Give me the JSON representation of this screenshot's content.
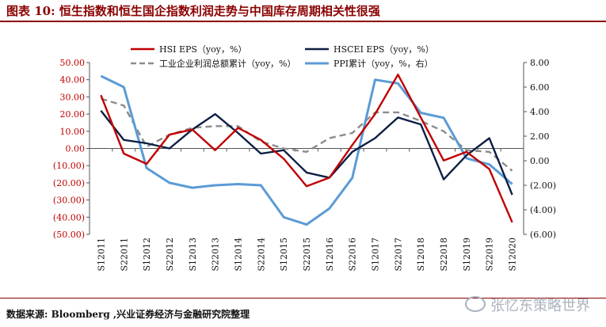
{
  "header": {
    "title": "图表 10:  恒生指数和恒生国企指数利润走势与中国库存周期相关性很强"
  },
  "footer": {
    "source": "数据来源: Bloomberg ,兴业证券经济与金融研究院整理",
    "watermark": "张忆东策略世界",
    "watermark_icon": "wechat-icon"
  },
  "chart_data": {
    "type": "line",
    "x": [
      "S1 2011",
      "S2 2011",
      "S1 2012",
      "S2 2012",
      "S1 2013",
      "S2 2013",
      "S1 2014",
      "S2 2014",
      "S1 2015",
      "S2 2015",
      "S1 2016",
      "S2 2016",
      "S1 2017",
      "S2 2017",
      "S1 2018",
      "S2 2018",
      "S1 2019",
      "S2 2019",
      "S1 2020"
    ],
    "x_tick_labels": [
      "S12011",
      "S22011",
      "S12012",
      "S22012",
      "S12013",
      "S22013",
      "S12014",
      "S22014",
      "S12015",
      "S22015",
      "S12016",
      "S22016",
      "S12017",
      "S22017",
      "S12018",
      "S22018",
      "S12019",
      "S22019",
      "S12020"
    ],
    "yaxis_left": {
      "ylim": [
        -50,
        50
      ],
      "ticks": [
        50,
        40,
        30,
        20,
        10,
        0,
        -10,
        -20,
        -30,
        -40,
        -50
      ],
      "tick_labels": [
        "50.00",
        "40.00",
        "30.00",
        "20.00",
        "10.00",
        "0.00",
        "(10.00)",
        "(20.00)",
        "(30.00)",
        "(40.00)",
        "(50.00)"
      ],
      "color": "#c00000"
    },
    "yaxis_right": {
      "ylim": [
        -6,
        8
      ],
      "ticks": [
        8,
        6,
        4,
        2,
        0,
        -2,
        -4,
        -6
      ],
      "tick_labels": [
        "8.00",
        "6.00",
        "4.00",
        "2.00",
        "0.00",
        "(2.00)",
        "(4.00)",
        "(6.00)"
      ]
    },
    "legend_position": "top",
    "grid": false,
    "series": [
      {
        "name": "HSI EPS（yoy，%）",
        "axis": "left",
        "color": "#c00000",
        "style": "solid",
        "values": [
          31,
          -3,
          -9,
          8,
          11,
          -1,
          12,
          5,
          -6,
          -22,
          -17,
          2,
          20,
          43,
          18,
          -7,
          -2,
          -12,
          -43
        ]
      },
      {
        "name": "HSCEI EPS（yoy，%）",
        "axis": "left",
        "color": "#0d1f44",
        "style": "solid",
        "values": [
          22,
          5,
          3,
          0,
          11,
          20,
          9,
          -3,
          -1,
          -14,
          -17,
          -2,
          6,
          18,
          14,
          -18,
          -4,
          6,
          -27
        ]
      },
      {
        "name": "工业企业利润总额累计（yoy，%）",
        "axis": "left",
        "color": "#8c8c8c",
        "style": "dashed",
        "values": [
          29,
          25,
          1,
          8,
          12,
          13,
          13,
          4,
          0,
          -2,
          6,
          9,
          21,
          21,
          16,
          10,
          -1,
          -2,
          -13
        ]
      },
      {
        "name": "PPI累计（yoy，%，右）",
        "axis": "right",
        "color": "#5b9bd5",
        "style": "solid",
        "values": [
          6.9,
          6.0,
          -0.6,
          -1.8,
          -2.2,
          -2.0,
          -1.9,
          -2.0,
          -4.6,
          -5.2,
          -3.9,
          -1.4,
          6.6,
          6.3,
          3.9,
          3.5,
          0.2,
          -0.3,
          -1.9
        ]
      }
    ]
  }
}
